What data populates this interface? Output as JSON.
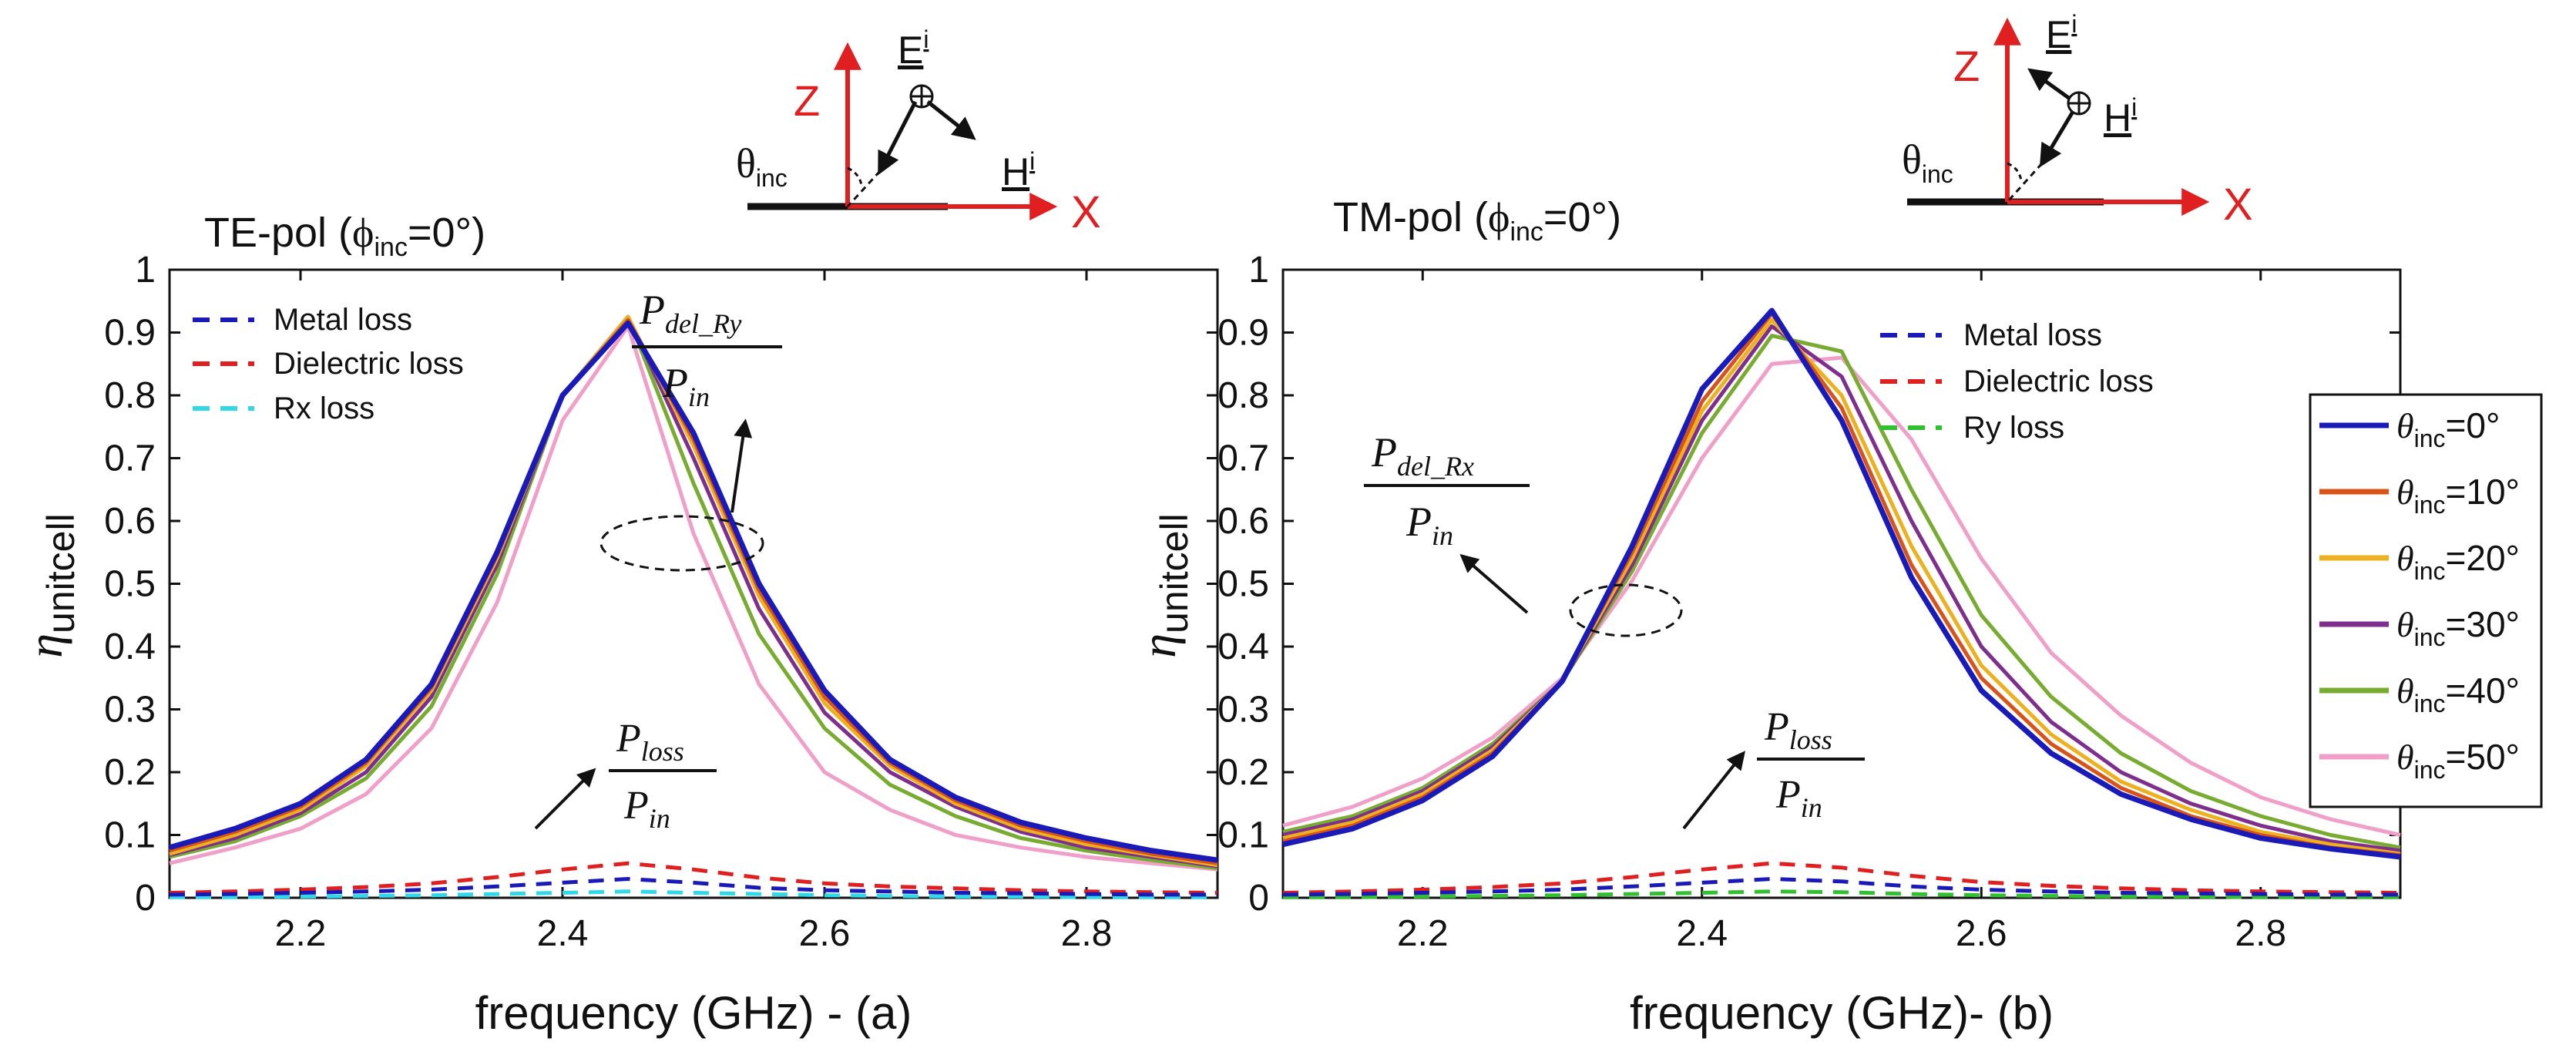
{
  "chart_data": [
    {
      "type": "line",
      "panel": "a",
      "header": {
        "pol_prefix": "TE-pol (",
        "phi": "ϕ",
        "phi_sub": "inc",
        "pol_suffix": "=0°)",
        "axis_z": "Z",
        "axis_x": "X",
        "theta": "θ",
        "theta_sub": "inc",
        "E": "E",
        "E_sup": "i",
        "H": "H",
        "H_sup": "i"
      },
      "xlabel": "frequency (GHz)  -  (a)",
      "ylabel": "η",
      "ylabel_sub": "unitcell",
      "xlim": [
        2.1,
        2.9
      ],
      "ylim": [
        0,
        1
      ],
      "xticks": [
        "2.2",
        "2.4",
        "2.6",
        "2.8"
      ],
      "yticks": [
        "0",
        "0.1",
        "0.2",
        "0.3",
        "0.4",
        "0.5",
        "0.6",
        "0.7",
        "0.8",
        "0.9",
        "1"
      ],
      "x": [
        2.1,
        2.15,
        2.2,
        2.25,
        2.3,
        2.35,
        2.4,
        2.45,
        2.5,
        2.55,
        2.6,
        2.65,
        2.7,
        2.75,
        2.8,
        2.85,
        2.9
      ],
      "series": [
        {
          "name": "0°",
          "color": "#1a1ab8",
          "values": [
            0.08,
            0.11,
            0.15,
            0.22,
            0.34,
            0.55,
            0.8,
            0.915,
            0.74,
            0.5,
            0.33,
            0.22,
            0.16,
            0.12,
            0.095,
            0.075,
            0.06
          ]
        },
        {
          "name": "10°",
          "color": "#d95319",
          "values": [
            0.075,
            0.105,
            0.145,
            0.215,
            0.335,
            0.545,
            0.8,
            0.92,
            0.73,
            0.49,
            0.32,
            0.215,
            0.155,
            0.115,
            0.09,
            0.07,
            0.055
          ]
        },
        {
          "name": "20°",
          "color": "#edb120",
          "values": [
            0.07,
            0.1,
            0.14,
            0.21,
            0.33,
            0.54,
            0.8,
            0.925,
            0.72,
            0.48,
            0.31,
            0.21,
            0.15,
            0.11,
            0.085,
            0.068,
            0.052
          ]
        },
        {
          "name": "30°",
          "color": "#7e2f8e",
          "values": [
            0.068,
            0.095,
            0.135,
            0.2,
            0.32,
            0.53,
            0.8,
            0.925,
            0.7,
            0.46,
            0.295,
            0.2,
            0.145,
            0.105,
            0.08,
            0.065,
            0.05
          ]
        },
        {
          "name": "40°",
          "color": "#77ac30",
          "values": [
            0.065,
            0.09,
            0.13,
            0.19,
            0.305,
            0.515,
            0.8,
            0.925,
            0.66,
            0.42,
            0.27,
            0.18,
            0.13,
            0.095,
            0.075,
            0.06,
            0.047
          ]
        },
        {
          "name": "50°",
          "color": "#f0a0c8",
          "values": [
            0.055,
            0.08,
            0.11,
            0.165,
            0.27,
            0.47,
            0.76,
            0.91,
            0.58,
            0.34,
            0.2,
            0.14,
            0.1,
            0.08,
            0.065,
            0.055,
            0.045
          ]
        }
      ],
      "loss_series": [
        {
          "name": "Metal loss",
          "color": "#1a1ab8",
          "values": [
            0.005,
            0.006,
            0.008,
            0.01,
            0.013,
            0.018,
            0.024,
            0.03,
            0.024,
            0.016,
            0.012,
            0.01,
            0.008,
            0.007,
            0.006,
            0.005,
            0.005
          ]
        },
        {
          "name": "Dielectric loss",
          "color": "#e02020",
          "values": [
            0.008,
            0.01,
            0.013,
            0.017,
            0.023,
            0.033,
            0.045,
            0.055,
            0.045,
            0.032,
            0.023,
            0.018,
            0.015,
            0.012,
            0.01,
            0.009,
            0.008
          ]
        },
        {
          "name": "Rx loss",
          "color": "#30d8e8",
          "values": [
            0.001,
            0.001,
            0.002,
            0.003,
            0.004,
            0.006,
            0.008,
            0.01,
            0.008,
            0.006,
            0.004,
            0.003,
            0.002,
            0.002,
            0.001,
            0.001,
            0.001
          ]
        }
      ],
      "annotation_main": {
        "num_main": "P",
        "num_sub": "del_Ry",
        "den_main": "P",
        "den_sub": "in"
      },
      "annotation_loss": {
        "num_main": "P",
        "num_sub": "loss",
        "den_main": "P",
        "den_sub": "in"
      }
    },
    {
      "type": "line",
      "panel": "b",
      "header": {
        "pol_prefix": "TM-pol (",
        "phi": "ϕ",
        "phi_sub": "inc",
        "pol_suffix": "=0°)",
        "axis_z": "Z",
        "axis_x": "X",
        "theta": "θ",
        "theta_sub": "inc",
        "E": "E",
        "E_sup": "i",
        "H": "H",
        "H_sup": "i"
      },
      "xlabel": "frequency (GHz)-  (b)",
      "ylabel": "η",
      "ylabel_sub": "unitcell",
      "xlim": [
        2.1,
        2.9
      ],
      "ylim": [
        0,
        1
      ],
      "xticks": [
        "2.2",
        "2.4",
        "2.6",
        "2.8"
      ],
      "yticks": [
        "0",
        "0.1",
        "0.2",
        "0.3",
        "0.4",
        "0.5",
        "0.6",
        "0.7",
        "0.8",
        "0.9",
        "1"
      ],
      "x": [
        2.1,
        2.15,
        2.2,
        2.25,
        2.3,
        2.35,
        2.4,
        2.45,
        2.5,
        2.55,
        2.6,
        2.65,
        2.7,
        2.75,
        2.8,
        2.85,
        2.9
      ],
      "series": [
        {
          "name": "0°",
          "color": "#1a1ab8",
          "values": [
            0.085,
            0.11,
            0.155,
            0.225,
            0.345,
            0.56,
            0.81,
            0.935,
            0.76,
            0.51,
            0.33,
            0.23,
            0.165,
            0.125,
            0.095,
            0.078,
            0.065
          ]
        },
        {
          "name": "10°",
          "color": "#d95319",
          "values": [
            0.09,
            0.115,
            0.16,
            0.23,
            0.345,
            0.55,
            0.79,
            0.93,
            0.78,
            0.53,
            0.35,
            0.245,
            0.175,
            0.13,
            0.1,
            0.08,
            0.068
          ]
        },
        {
          "name": "20°",
          "color": "#edb120",
          "values": [
            0.095,
            0.12,
            0.165,
            0.235,
            0.345,
            0.54,
            0.775,
            0.92,
            0.8,
            0.56,
            0.37,
            0.26,
            0.185,
            0.14,
            0.105,
            0.085,
            0.07
          ]
        },
        {
          "name": "30°",
          "color": "#7e2f8e",
          "values": [
            0.1,
            0.125,
            0.17,
            0.24,
            0.345,
            0.53,
            0.76,
            0.91,
            0.83,
            0.6,
            0.4,
            0.28,
            0.2,
            0.15,
            0.115,
            0.09,
            0.075
          ]
        },
        {
          "name": "40°",
          "color": "#77ac30",
          "values": [
            0.105,
            0.13,
            0.175,
            0.245,
            0.345,
            0.52,
            0.74,
            0.895,
            0.87,
            0.65,
            0.45,
            0.32,
            0.23,
            0.17,
            0.13,
            0.1,
            0.08
          ]
        },
        {
          "name": "50°",
          "color": "#f0a0c8",
          "values": [
            0.115,
            0.145,
            0.19,
            0.255,
            0.35,
            0.505,
            0.7,
            0.85,
            0.86,
            0.73,
            0.54,
            0.39,
            0.29,
            0.215,
            0.16,
            0.125,
            0.1
          ]
        }
      ],
      "loss_series": [
        {
          "name": "Metal loss",
          "color": "#1a1ab8",
          "values": [
            0.005,
            0.006,
            0.008,
            0.01,
            0.013,
            0.018,
            0.024,
            0.03,
            0.026,
            0.018,
            0.013,
            0.01,
            0.008,
            0.007,
            0.006,
            0.005,
            0.005
          ]
        },
        {
          "name": "Dielectric loss",
          "color": "#e02020",
          "values": [
            0.008,
            0.01,
            0.013,
            0.017,
            0.023,
            0.033,
            0.045,
            0.055,
            0.048,
            0.035,
            0.025,
            0.019,
            0.015,
            0.012,
            0.01,
            0.009,
            0.008
          ]
        },
        {
          "name": "Ry loss",
          "color": "#30c030",
          "values": [
            0.001,
            0.001,
            0.002,
            0.003,
            0.004,
            0.006,
            0.008,
            0.01,
            0.009,
            0.006,
            0.004,
            0.003,
            0.002,
            0.002,
            0.001,
            0.001,
            0.001
          ]
        }
      ],
      "annotation_main": {
        "num_main": "P",
        "num_sub": "del_Rx",
        "den_main": "P",
        "den_sub": "in"
      },
      "annotation_loss": {
        "num_main": "P",
        "num_sub": "loss",
        "den_main": "P",
        "den_sub": "in"
      }
    }
  ],
  "legend_shared": {
    "symbol": "θ",
    "sub": "inc",
    "entries": [
      {
        "label": "=0°",
        "color": "#1a1ab8"
      },
      {
        "label": "=10°",
        "color": "#d95319"
      },
      {
        "label": "=20°",
        "color": "#edb120"
      },
      {
        "label": "=30°",
        "color": "#7e2f8e"
      },
      {
        "label": "=40°",
        "color": "#77ac30"
      },
      {
        "label": "=50°",
        "color": "#f0a0c8"
      }
    ]
  }
}
